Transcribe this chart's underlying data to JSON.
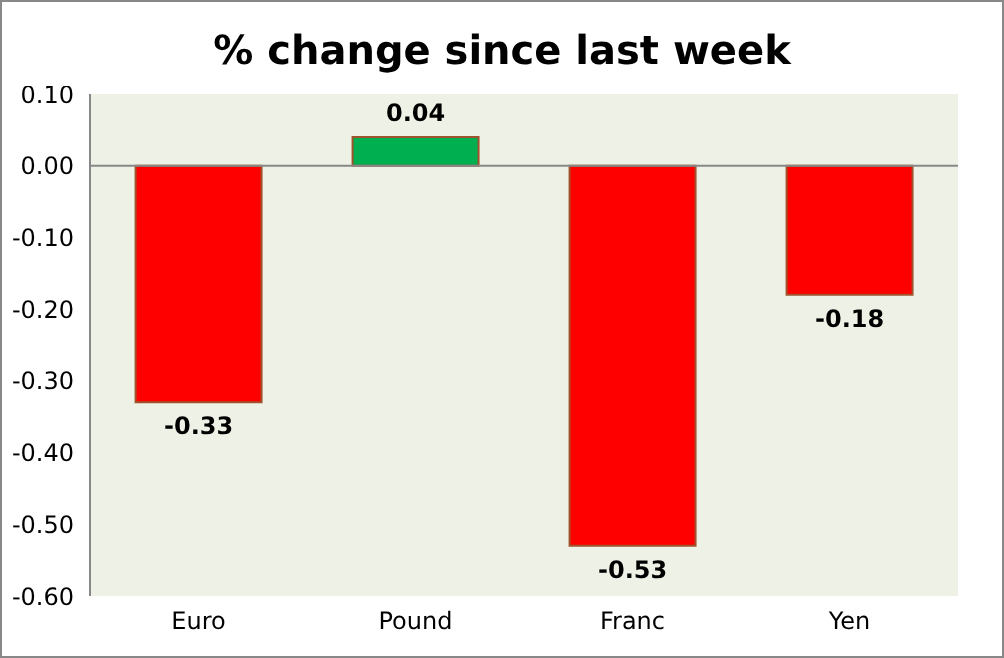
{
  "chart_data": {
    "type": "bar",
    "title": "% change since last week",
    "categories": [
      "Euro",
      "Pound",
      "Franc",
      "Yen"
    ],
    "values": [
      -0.33,
      0.04,
      -0.53,
      -0.18
    ],
    "colors": [
      "#ff0000",
      "#00b050",
      "#ff0000",
      "#ff0000"
    ],
    "ylim": [
      -0.6,
      0.1
    ],
    "yticks": [
      {
        "value": 0.1,
        "label": "0.10"
      },
      {
        "value": 0,
        "label": "0.00"
      },
      {
        "value": -0.1,
        "label": "-0.10"
      },
      {
        "value": -0.2,
        "label": "-0.20"
      },
      {
        "value": -0.3,
        "label": "-0.30"
      },
      {
        "value": -0.4,
        "label": "-0.40"
      },
      {
        "value": -0.5,
        "label": "-0.50"
      },
      {
        "value": -0.6,
        "label": "-0.60"
      }
    ],
    "data_labels": true
  }
}
